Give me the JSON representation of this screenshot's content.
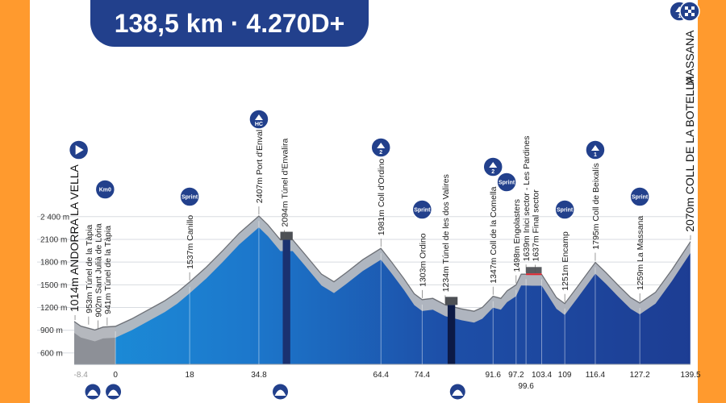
{
  "header": {
    "summary": "138,5 km · 4.270D+"
  },
  "colors": {
    "accent": "#22408c",
    "frame": "#ff9a2e",
    "profile_dark": "#1d3d93",
    "profile_light": "#1b8fd9",
    "ridge": "#b7bac0"
  },
  "chart_data": {
    "type": "area",
    "xlabel": "",
    "ylabel": "",
    "ylim": [
      450,
      2600
    ],
    "xlim": [
      -10,
      139.5
    ],
    "y_ticks": [
      600,
      900,
      1200,
      1500,
      1800,
      2100,
      2400
    ],
    "y_tick_labels": [
      "600 m",
      "900 m",
      "1200 m",
      "1500 m",
      "1800 m",
      "2100 m",
      "2 400 m"
    ],
    "x_ticks": [
      -8.4,
      0,
      18,
      34.8,
      64.4,
      74.4,
      91.6,
      97.2,
      99.6,
      103.4,
      109,
      116.4,
      127.2,
      139.5
    ],
    "x_tick_labels": [
      "-8.4",
      "0",
      "18",
      "34.8",
      "64.4",
      "74.4",
      "91.6",
      "97.2",
      "99.6",
      "103.4",
      "109",
      "116.4",
      "127.2",
      "139.5"
    ],
    "profile": [
      [
        -10,
        1014
      ],
      [
        -8.4,
        953
      ],
      [
        -5,
        902
      ],
      [
        -3,
        941
      ],
      [
        0,
        950
      ],
      [
        4,
        1050
      ],
      [
        8,
        1170
      ],
      [
        12,
        1290
      ],
      [
        15,
        1400
      ],
      [
        18,
        1537
      ],
      [
        22,
        1730
      ],
      [
        26,
        1950
      ],
      [
        30,
        2180
      ],
      [
        34.8,
        2407
      ],
      [
        37,
        2290
      ],
      [
        40,
        2094
      ],
      [
        43,
        2094
      ],
      [
        46,
        1900
      ],
      [
        50,
        1640
      ],
      [
        53,
        1540
      ],
      [
        56,
        1660
      ],
      [
        60,
        1830
      ],
      [
        64.4,
        1981
      ],
      [
        67,
        1800
      ],
      [
        70,
        1580
      ],
      [
        72.5,
        1380
      ],
      [
        74.4,
        1303
      ],
      [
        77,
        1320
      ],
      [
        80,
        1234
      ],
      [
        84,
        1180
      ],
      [
        87,
        1150
      ],
      [
        89,
        1200
      ],
      [
        91.6,
        1347
      ],
      [
        93.5,
        1320
      ],
      [
        95,
        1420
      ],
      [
        97.2,
        1498
      ],
      [
        98.4,
        1639
      ],
      [
        99.6,
        1639
      ],
      [
        101,
        1637
      ],
      [
        103.4,
        1637
      ],
      [
        105,
        1500
      ],
      [
        107,
        1330
      ],
      [
        109,
        1251
      ],
      [
        112,
        1470
      ],
      [
        116.4,
        1795
      ],
      [
        119,
        1660
      ],
      [
        122,
        1490
      ],
      [
        125,
        1330
      ],
      [
        127.2,
        1259
      ],
      [
        131,
        1400
      ],
      [
        135,
        1700
      ],
      [
        139.5,
        2070
      ]
    ],
    "annotations": [
      {
        "label": "1014m ANDORRA LA VELLA",
        "x": -9.8,
        "elev": 1014,
        "big": true
      },
      {
        "label": "953m Túnel de la Tàpia",
        "x": -6.5,
        "elev": 953
      },
      {
        "label": "902m Sant Julià de Lòria",
        "x": -4.2,
        "elev": 902
      },
      {
        "label": "941m Túnel de la Tàpia",
        "x": -2.0,
        "elev": 941
      },
      {
        "label": "1537m Canillo",
        "x": 18,
        "elev": 1537
      },
      {
        "label": "2407m Port d'Envalira",
        "x": 34.8,
        "elev": 2407
      },
      {
        "label": "2094m Túnel d'Envalira",
        "x": 41,
        "elev": 2094
      },
      {
        "label": "1981m Coll d'Ordino",
        "x": 64.4,
        "elev": 1981
      },
      {
        "label": "1303m Ordino",
        "x": 74.4,
        "elev": 1303
      },
      {
        "label": "1234m Túnel de les dos Valires",
        "x": 80,
        "elev": 1234
      },
      {
        "label": "1347m Coll de la Comella",
        "x": 91.6,
        "elev": 1347
      },
      {
        "label": "1498m Engolasters",
        "x": 97.2,
        "elev": 1498
      },
      {
        "label": "1639m Inici sector - Les Pardines",
        "x": 99.6,
        "elev": 1639
      },
      {
        "label": "1637m Final sector",
        "x": 101.8,
        "elev": 1637
      },
      {
        "label": "1251m Encamp",
        "x": 109,
        "elev": 1251
      },
      {
        "label": "1795m Coll de Beixalís",
        "x": 116.4,
        "elev": 1795
      },
      {
        "label": "1259m La Massana",
        "x": 127.2,
        "elev": 1259
      },
      {
        "label": "2070m COLL DE LA BOTELLA",
        "x": 139.5,
        "elev": 2070,
        "big": true
      }
    ],
    "badges": [
      {
        "x": -8.9,
        "type": "start-icon",
        "text": ""
      },
      {
        "x": -2.5,
        "type": "km0-badge",
        "text": "Km0"
      },
      {
        "x": 18,
        "type": "sprint-badge",
        "text": "Sprint"
      },
      {
        "x": 34.8,
        "type": "climb-hc-badge",
        "text": "HC"
      },
      {
        "x": 64.4,
        "type": "climb-cat2-badge",
        "text": "2"
      },
      {
        "x": 74.4,
        "type": "sprint-badge",
        "text": "Sprint"
      },
      {
        "x": 91.6,
        "type": "climb-cat2-badge",
        "text": "2"
      },
      {
        "x": 94.9,
        "type": "sprint-badge",
        "text": "Sprint"
      },
      {
        "x": 109,
        "type": "sprint-badge",
        "text": "Sprint"
      },
      {
        "x": 116.4,
        "type": "climb-cat1-badge",
        "text": "1"
      },
      {
        "x": 127.2,
        "type": "sprint-badge",
        "text": "Sprint"
      },
      {
        "x": 136.8,
        "type": "climb-cat1-badge",
        "text": "1"
      },
      {
        "x": 139.3,
        "type": "finish-flag-badge",
        "text": ""
      }
    ],
    "finish_label": "MASSANA",
    "tunnels": [
      {
        "from": 40,
        "to": 43,
        "kind": "tunnel"
      },
      {
        "from": 80,
        "to": 83,
        "kind": "tunnel"
      },
      {
        "from": 99.6,
        "to": 103.4,
        "kind": "sector"
      }
    ],
    "bottom_icons": [
      -5.5,
      -0.5,
      40,
      83
    ]
  }
}
